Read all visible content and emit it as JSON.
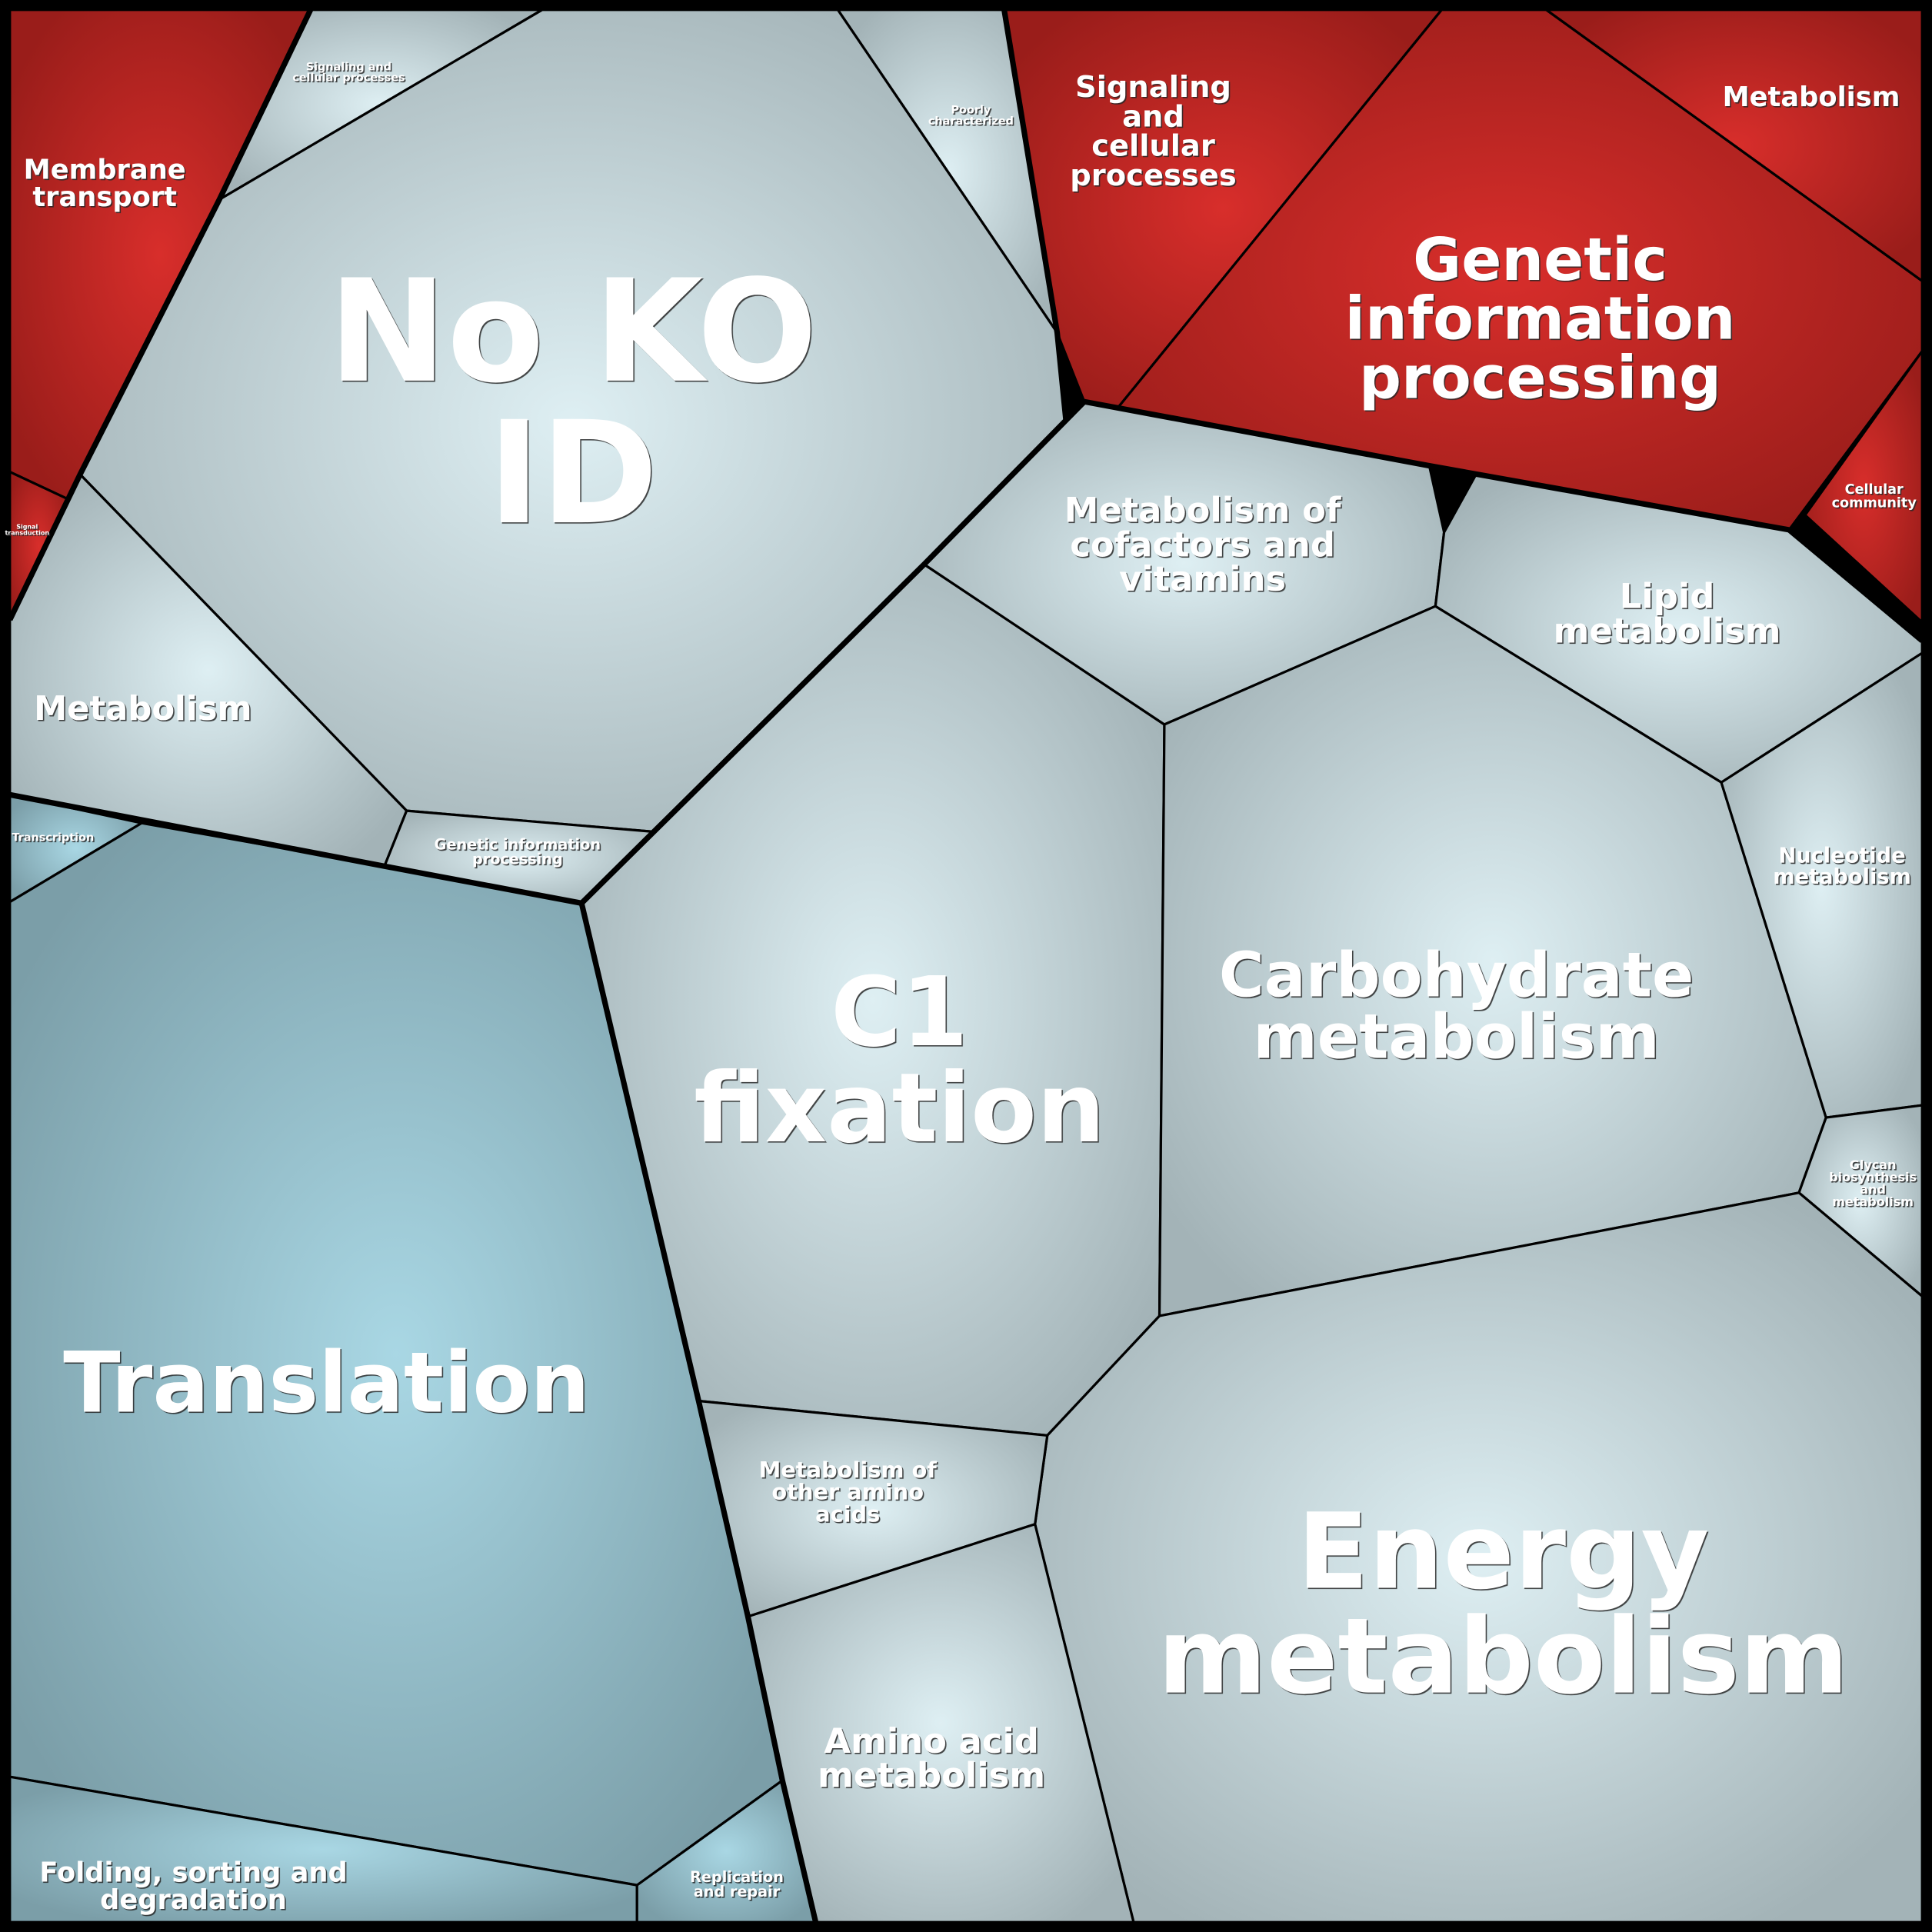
{
  "cells": [
    {
      "lines": [
        "Membrane",
        "transport"
      ]
    },
    {
      "lines": [
        "Signal",
        "transduction"
      ]
    },
    {
      "lines": [
        "Signaling",
        "and",
        "cellular",
        "processes"
      ]
    },
    {
      "lines": [
        "Genetic",
        "information",
        "processing"
      ]
    },
    {
      "lines": [
        "Metabolism"
      ]
    },
    {
      "lines": [
        "Cellular",
        "community"
      ]
    },
    {
      "lines": [
        "Signaling and",
        "cellular processes"
      ]
    },
    {
      "lines": [
        "Poorly",
        "characterized"
      ]
    },
    {
      "lines": [
        "No KO",
        "ID"
      ]
    },
    {
      "lines": [
        "Metabolism"
      ]
    },
    {
      "lines": [
        "Genetic information",
        "processing"
      ]
    },
    {
      "lines": [
        "Transcription"
      ]
    },
    {
      "lines": [
        "Translation"
      ]
    },
    {
      "lines": [
        "Folding, sorting and",
        "degradation"
      ]
    },
    {
      "lines": [
        "Replication",
        "and repair"
      ]
    },
    {
      "lines": [
        "C1",
        "fixation"
      ]
    },
    {
      "lines": [
        "Metabolism of",
        "cofactors and",
        "vitamins"
      ]
    },
    {
      "lines": [
        "Lipid",
        "metabolism"
      ]
    },
    {
      "lines": [
        "Carbohydrate",
        "metabolism"
      ]
    },
    {
      "lines": [
        "Nucleotide",
        "metabolism"
      ]
    },
    {
      "lines": [
        "Glycan",
        "biosynthesis",
        "and",
        "metabolism"
      ]
    },
    {
      "lines": [
        "Energy",
        "metabolism"
      ]
    },
    {
      "lines": [
        "Metabolism of",
        "other amino",
        "acids"
      ]
    },
    {
      "lines": [
        "Amino acid",
        "metabolism"
      ]
    }
  ]
}
